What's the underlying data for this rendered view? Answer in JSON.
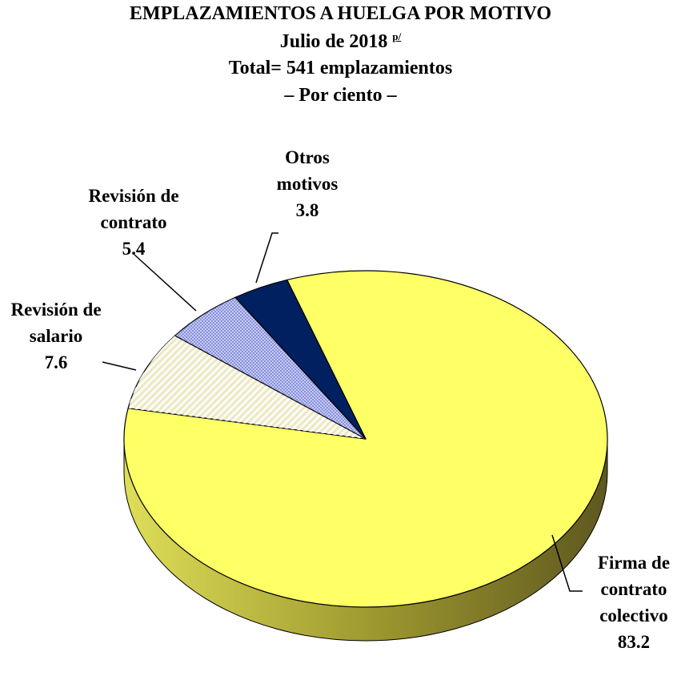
{
  "chart_data": {
    "type": "pie",
    "title": "EMPLAZAMIENTOS A HUELGA POR MOTIVO",
    "subtitle": "Julio de 2018",
    "subtitle_note": "p/",
    "total_note": "Total= 541 emplazamientos",
    "unit_note": "– Por ciento –",
    "categories": [
      "Firma de contrato colectivo",
      "Revisión de salario",
      "Revisión de contrato",
      "Otros motivos"
    ],
    "values": [
      83.2,
      7.6,
      5.4,
      3.8
    ],
    "colors": [
      "#ffff66",
      "#ece8c4",
      "#c4c8f4",
      "#002060"
    ]
  }
}
